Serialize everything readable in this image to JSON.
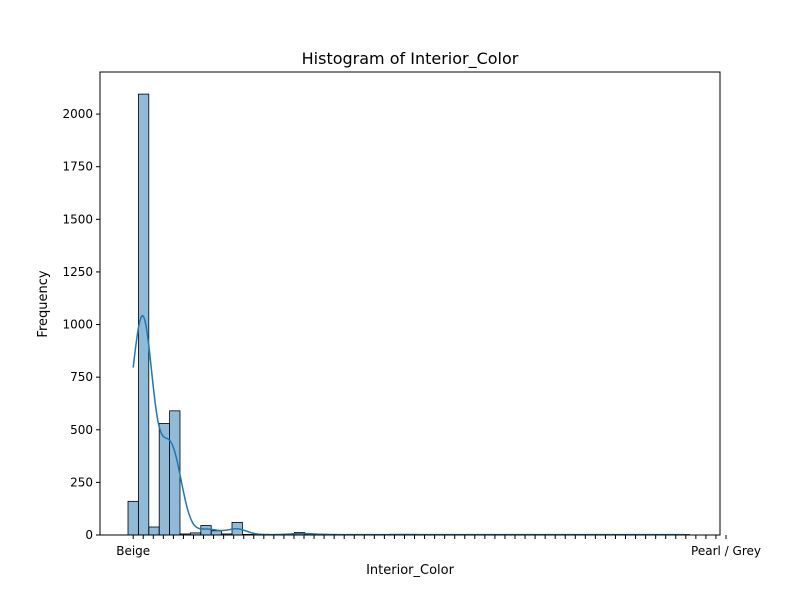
{
  "chart_data": {
    "type": "bar",
    "title": "Histogram of Interior_Color",
    "xlabel": "Interior_Color",
    "ylabel": "Frequency",
    "ylim": [
      0,
      2200
    ],
    "yticks": [
      0,
      250,
      500,
      750,
      1000,
      1250,
      1500,
      1750,
      2000
    ],
    "xtick_first": "Beige",
    "xtick_last": "Pearl / Grey",
    "bar_color": "#1f77b4",
    "bar_alpha": 0.5,
    "kde_color": "#1f77b4",
    "grid": false,
    "legend": "none",
    "values": [
      160,
      2095,
      38,
      530,
      590,
      5,
      10,
      45,
      20,
      5,
      60,
      3,
      2,
      2,
      2,
      2,
      12,
      5,
      3,
      2,
      2,
      2,
      2,
      2,
      2,
      2,
      3,
      2,
      2,
      2,
      2,
      2,
      2,
      2,
      2,
      2,
      2,
      2,
      2,
      2,
      2,
      2,
      2,
      2,
      2,
      2,
      2,
      2,
      2,
      2,
      2,
      2,
      2,
      2
    ]
  }
}
